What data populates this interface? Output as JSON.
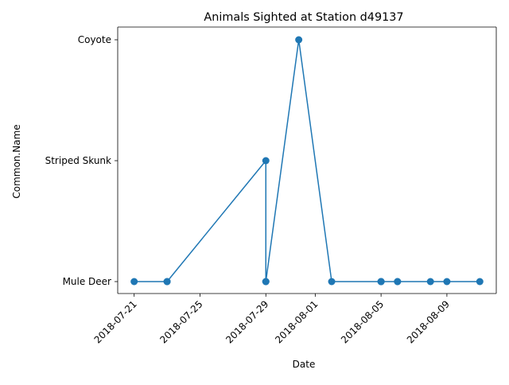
{
  "chart_data": {
    "type": "line",
    "title": "Animals Sighted at Station d49137",
    "xlabel": "Date",
    "ylabel": "Common.Name",
    "categories": [
      "Mule Deer",
      "Striped Skunk",
      "Coyote"
    ],
    "x_ticks": [
      "2018-07-21",
      "2018-07-25",
      "2018-07-29",
      "2018-08-01",
      "2018-08-05",
      "2018-08-09"
    ],
    "xlim": [
      "2018-07-20",
      "2018-08-12"
    ],
    "series": [
      {
        "color": "#1f77b4",
        "marker": "circle",
        "points": [
          {
            "x": "2018-07-21",
            "y": "Mule Deer"
          },
          {
            "x": "2018-07-23",
            "y": "Mule Deer"
          },
          {
            "x": "2018-07-23",
            "y": "Mule Deer"
          },
          {
            "x": "2018-07-29",
            "y": "Striped Skunk"
          },
          {
            "x": "2018-07-29",
            "y": "Mule Deer"
          },
          {
            "x": "2018-07-29",
            "y": "Mule Deer"
          },
          {
            "x": "2018-07-31",
            "y": "Coyote"
          },
          {
            "x": "2018-08-02",
            "y": "Mule Deer"
          },
          {
            "x": "2018-08-05",
            "y": "Mule Deer"
          },
          {
            "x": "2018-08-05",
            "y": "Mule Deer"
          },
          {
            "x": "2018-08-05",
            "y": "Mule Deer"
          },
          {
            "x": "2018-08-06",
            "y": "Mule Deer"
          },
          {
            "x": "2018-08-06",
            "y": "Mule Deer"
          },
          {
            "x": "2018-08-08",
            "y": "Mule Deer"
          },
          {
            "x": "2018-08-09",
            "y": "Mule Deer"
          },
          {
            "x": "2018-08-11",
            "y": "Mule Deer"
          }
        ]
      }
    ],
    "grid": false,
    "legend": false
  }
}
